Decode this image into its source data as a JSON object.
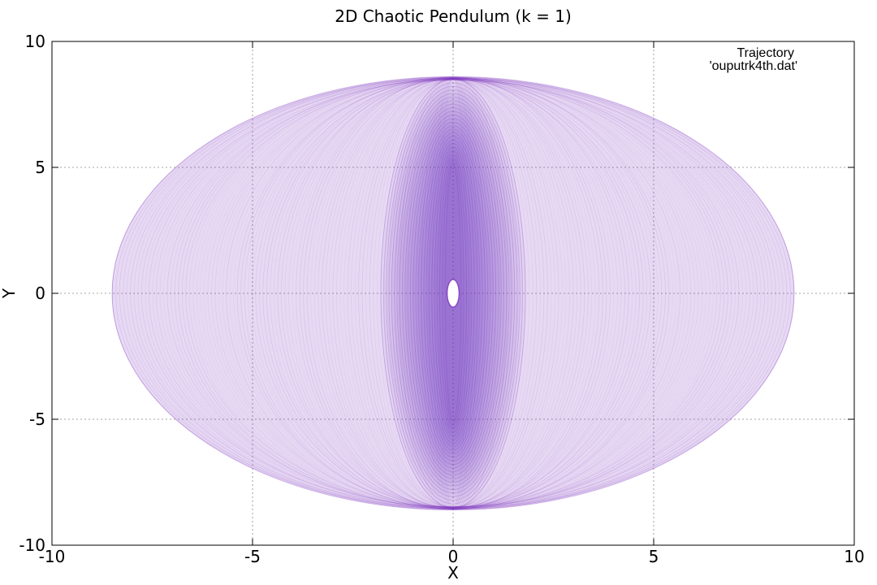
{
  "chart_data": {
    "type": "scatter",
    "title": "2D Chaotic Pendulum (k = 1)",
    "xlabel": "X",
    "ylabel": "Y",
    "xlim": [
      -10,
      10
    ],
    "ylim": [
      -10,
      10
    ],
    "xticks": [
      -10,
      -5,
      0,
      5,
      10
    ],
    "yticks": [
      -10,
      -5,
      0,
      5,
      10
    ],
    "xtick_labels": [
      "-10",
      "-5",
      "0",
      "5",
      "10"
    ],
    "ytick_labels": [
      "-10",
      "-5",
      "0",
      "5",
      "10"
    ],
    "grid": true,
    "legend": {
      "placement": "top-right",
      "title": "Trajectory",
      "entries": [
        "'ouputrk4th.dat'"
      ]
    },
    "series": [
      {
        "name": "'ouputrk4th.dat'",
        "color": "#7a2fbf",
        "envelope": {
          "x_extent": [
            -8.5,
            8.5
          ],
          "y_extent": [
            -8.6,
            8.6
          ]
        },
        "central_hole": {
          "x_extent": [
            -0.15,
            0.15
          ],
          "y_extent": [
            -0.55,
            0.55
          ]
        }
      }
    ]
  }
}
